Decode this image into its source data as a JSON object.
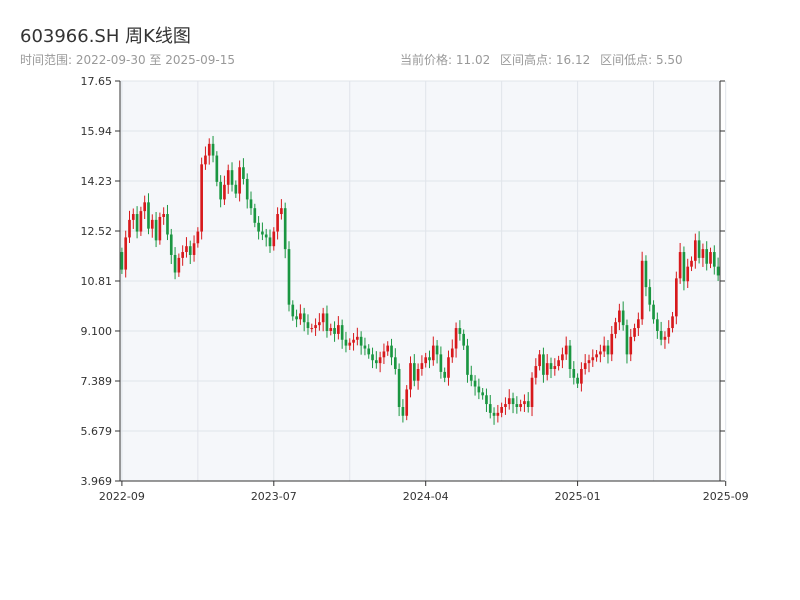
{
  "header": {
    "title": "603966.SH 周K线图",
    "range_label": "时间范围: 2022-09-30 至 2025-09-15",
    "stat_current": "当前价格: 11.02",
    "stat_high": "区间高点: 16.12",
    "stat_low": "区间低点: 5.50"
  },
  "colors": {
    "up": "#d7191c",
    "down": "#1a9641",
    "plot_bg": "#f5f7fa",
    "grid": "#e0e4ea",
    "axis": "#333333"
  },
  "chart_data": {
    "type": "candlestick",
    "x_ticks": [
      "2022-09",
      "2023-07",
      "2024-04",
      "2025-01",
      "2025-09"
    ],
    "x_tick_positions": [
      0,
      40,
      80,
      120,
      159
    ],
    "y_ticks": [
      "3.969",
      "5.679",
      "7.389",
      "9.100",
      "10.81",
      "12.52",
      "14.23",
      "15.94",
      "17.65"
    ],
    "y_tick_values": [
      3.969,
      5.679,
      7.389,
      9.1,
      10.81,
      12.52,
      14.23,
      15.94,
      17.65
    ],
    "ylim": [
      3.969,
      17.65
    ],
    "grid": true,
    "closes": [
      11.2,
      12.3,
      12.9,
      13.1,
      12.5,
      13.2,
      13.5,
      12.6,
      12.9,
      12.2,
      13.0,
      13.1,
      12.4,
      11.7,
      11.1,
      11.6,
      11.8,
      12.0,
      11.7,
      12.1,
      12.5,
      14.8,
      15.1,
      15.5,
      15.1,
      14.2,
      13.6,
      14.1,
      14.6,
      14.1,
      13.8,
      14.7,
      14.3,
      13.6,
      13.3,
      12.8,
      12.5,
      12.4,
      12.3,
      12.0,
      12.5,
      13.1,
      13.3,
      11.9,
      10.0,
      9.6,
      9.5,
      9.7,
      9.4,
      9.2,
      9.2,
      9.3,
      9.4,
      9.7,
      9.1,
      9.2,
      9.0,
      9.3,
      8.8,
      8.6,
      8.7,
      8.8,
      8.9,
      8.6,
      8.5,
      8.3,
      8.1,
      8.0,
      8.2,
      8.4,
      8.6,
      8.2,
      7.8,
      6.5,
      6.2,
      7.1,
      8.0,
      7.4,
      7.8,
      8.0,
      8.2,
      8.1,
      8.6,
      8.3,
      7.7,
      7.5,
      8.2,
      8.5,
      9.2,
      9.0,
      8.6,
      7.6,
      7.4,
      7.2,
      7.0,
      6.9,
      6.6,
      6.3,
      6.2,
      6.3,
      6.5,
      6.6,
      6.8,
      6.6,
      6.5,
      6.6,
      6.7,
      6.5,
      7.5,
      7.9,
      8.3,
      7.6,
      8.0,
      7.8,
      7.9,
      8.1,
      8.3,
      8.6,
      7.8,
      7.5,
      7.3,
      7.8,
      8.0,
      8.1,
      8.2,
      8.3,
      8.4,
      8.6,
      8.3,
      9.0,
      9.4,
      9.8,
      9.3,
      8.3,
      8.9,
      9.2,
      9.5,
      11.5,
      10.6,
      10.0,
      9.5,
      9.1,
      8.8,
      8.9,
      9.2,
      9.6,
      10.9,
      11.8,
      10.8,
      11.3,
      11.5,
      12.2,
      11.6,
      11.9,
      11.4,
      11.8,
      11.3,
      11.0
    ],
    "first_open": 11.8,
    "range_high": 16.12,
    "range_low": 5.5,
    "last_close": 11.02
  }
}
